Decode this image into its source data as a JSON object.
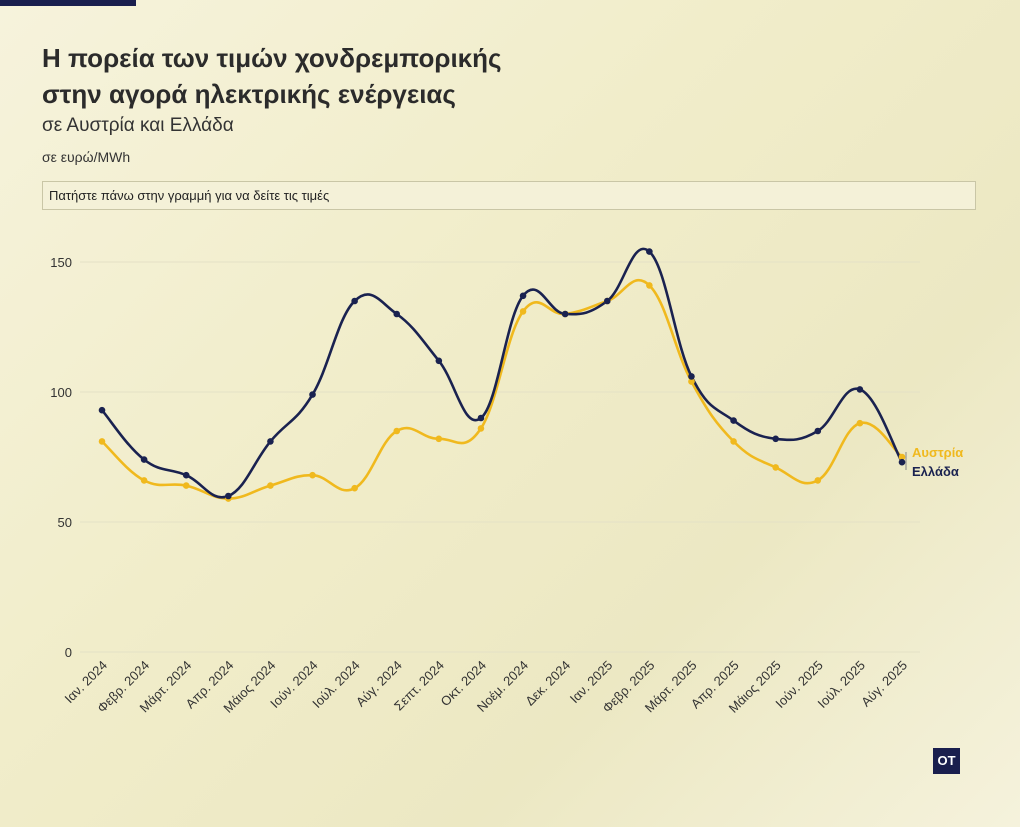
{
  "header": {
    "title": "Η πορεία των τιμών χονδρεμπορικής στην αγορά ηλεκτρικής ενέργειας",
    "subtitle": "σε Αυστρία και Ελλάδα",
    "unit": "σε ευρώ/MWh",
    "hint": "Πατήστε πάνω στην γραμμή για να δείτε τις τιμές"
  },
  "logo": "OT",
  "colors": {
    "greece": "#1a2250",
    "austria": "#f0b91e",
    "grid": "#e4e1c6",
    "axis_text": "#333333"
  },
  "chart_data": {
    "type": "line",
    "title": "",
    "xlabel": "",
    "ylabel": "",
    "ylim": [
      0,
      160
    ],
    "yticks": [
      0,
      50,
      100,
      150
    ],
    "grid": true,
    "categories": [
      "Ιαν. 2024",
      "Φεβρ. 2024",
      "Μάρτ. 2024",
      "Απρ. 2024",
      "Μάιος 2024",
      "Ιούν. 2024",
      "Ιούλ. 2024",
      "Αύγ. 2024",
      "Σεπτ. 2024",
      "Οκτ. 2024",
      "Νοέμ. 2024",
      "Δεκ. 2024",
      "Ιαν. 2025",
      "Φεβρ. 2025",
      "Μάρτ. 2025",
      "Απρ. 2025",
      "Μάιος 2025",
      "Ιούν. 2025",
      "Ιούλ. 2025",
      "Αύγ. 2025"
    ],
    "series": [
      {
        "name": "Ελλάδα",
        "color": "#1a2250",
        "values": [
          93,
          74,
          68,
          60,
          81,
          99,
          135,
          130,
          112,
          90,
          137,
          130,
          135,
          154,
          106,
          89,
          82,
          85,
          101,
          73
        ]
      },
      {
        "name": "Αυστρία",
        "color": "#f0b91e",
        "values": [
          81,
          66,
          64,
          59,
          64,
          68,
          63,
          85,
          82,
          86,
          131,
          130,
          135,
          141,
          104,
          81,
          71,
          66,
          88,
          75
        ]
      }
    ]
  }
}
